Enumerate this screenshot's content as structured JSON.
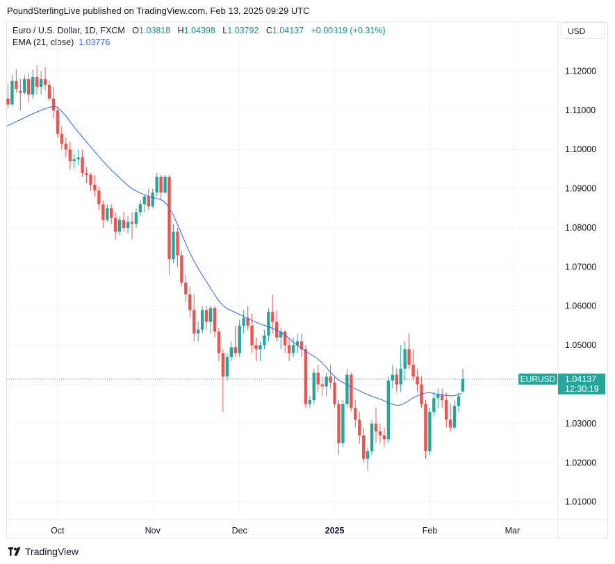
{
  "header": {
    "published": "PoundSterlingLive published on TradingView.com, Feb 13, 2025 09:29 UTC"
  },
  "legend": {
    "symbol": "Euro / U.S. Dollar, 1D, FXCM",
    "o_label": "O",
    "o_value": "1.03818",
    "h_label": "H",
    "h_value": "1.04398",
    "l_label": "L",
    "l_value": "1.03792",
    "c_label": "C",
    "c_value": "1.04137",
    "change": "+0.00319 (+0.31%)",
    "ema_label": "EMA (21, close)",
    "ema_value": "1.03776"
  },
  "currency_button": "USD",
  "footer": {
    "brand": "TradingView"
  },
  "colors": {
    "up": "#26a69a",
    "down": "#ef5350",
    "ema": "#2962ff",
    "grid": "#f0f3fa",
    "axis_text": "#131722"
  },
  "chart_data": {
    "type": "candlestick",
    "title": "Euro / U.S. Dollar, 1D, FXCM",
    "ylim": [
      1.0055,
      1.1325
    ],
    "y_ticks": [
      "1.12000",
      "1.11000",
      "1.10000",
      "1.09000",
      "1.08000",
      "1.07000",
      "1.06000",
      "1.05000",
      "1.04000",
      "1.03000",
      "1.02000",
      "1.01000"
    ],
    "y_tick_values": [
      1.12,
      1.11,
      1.1,
      1.09,
      1.08,
      1.07,
      1.06,
      1.05,
      1.04,
      1.03,
      1.02,
      1.01
    ],
    "x_ticks": [
      {
        "label": "Oct",
        "index": 12,
        "bold": false
      },
      {
        "label": "Nov",
        "index": 35,
        "bold": false
      },
      {
        "label": "Dec",
        "index": 56,
        "bold": false
      },
      {
        "label": "2025",
        "index": 79,
        "bold": true
      },
      {
        "label": "Feb",
        "index": 102,
        "bold": false
      },
      {
        "label": "Mar",
        "index": 122,
        "bold": false
      }
    ],
    "candles": [
      [
        1.113,
        1.1165,
        1.1105,
        1.1115
      ],
      [
        1.1115,
        1.119,
        1.111,
        1.1175
      ],
      [
        1.1175,
        1.1205,
        1.1145,
        1.1155
      ],
      [
        1.115,
        1.118,
        1.11,
        1.1145
      ],
      [
        1.1145,
        1.119,
        1.114,
        1.118
      ],
      [
        1.118,
        1.1195,
        1.112,
        1.114
      ],
      [
        1.114,
        1.1205,
        1.113,
        1.1185
      ],
      [
        1.1185,
        1.1215,
        1.114,
        1.116
      ],
      [
        1.116,
        1.12,
        1.114,
        1.118
      ],
      [
        1.118,
        1.121,
        1.115,
        1.1165
      ],
      [
        1.1165,
        1.1175,
        1.1125,
        1.113
      ],
      [
        1.113,
        1.116,
        1.108,
        1.11
      ],
      [
        1.11,
        1.111,
        1.103,
        1.104
      ],
      [
        1.104,
        1.106,
        1.1,
        1.1015
      ],
      [
        1.1015,
        1.103,
        1.098,
        1.1
      ],
      [
        1.1,
        1.102,
        1.095,
        1.097
      ],
      [
        1.097,
        1.099,
        1.095,
        1.0975
      ],
      [
        1.0975,
        1.1,
        1.096,
        1.098
      ],
      [
        1.098,
        1.1,
        1.093,
        1.094
      ],
      [
        1.094,
        1.0955,
        1.0915,
        1.0935
      ],
      [
        1.0935,
        1.094,
        1.0895,
        1.091
      ],
      [
        1.091,
        1.0935,
        1.088,
        1.0895
      ],
      [
        1.0895,
        1.0905,
        1.0845,
        1.086
      ],
      [
        1.086,
        1.087,
        1.08,
        1.082
      ],
      [
        1.082,
        1.086,
        1.0815,
        1.085
      ],
      [
        1.085,
        1.086,
        1.081,
        1.0825
      ],
      [
        1.0825,
        1.084,
        1.077,
        1.079
      ],
      [
        1.079,
        1.083,
        1.078,
        1.082
      ],
      [
        1.082,
        1.084,
        1.079,
        1.08
      ],
      [
        1.08,
        1.083,
        1.0785,
        1.0815
      ],
      [
        1.0815,
        1.084,
        1.077,
        1.081
      ],
      [
        1.081,
        1.085,
        1.08,
        1.084
      ],
      [
        1.084,
        1.087,
        1.083,
        1.086
      ],
      [
        1.086,
        1.0885,
        1.084,
        1.088
      ],
      [
        1.088,
        1.09,
        1.0845,
        1.0855
      ],
      [
        1.0855,
        1.09,
        1.085,
        1.089
      ],
      [
        1.089,
        1.094,
        1.088,
        1.093
      ],
      [
        1.093,
        1.0935,
        1.087,
        1.089
      ],
      [
        1.089,
        1.0935,
        1.0885,
        1.093
      ],
      [
        1.093,
        1.0935,
        1.068,
        1.072
      ],
      [
        1.072,
        1.081,
        1.071,
        1.079
      ],
      [
        1.079,
        1.08,
        1.07,
        1.073
      ],
      [
        1.073,
        1.074,
        1.065,
        1.066
      ],
      [
        1.066,
        1.068,
        1.061,
        1.063
      ],
      [
        1.063,
        1.065,
        1.057,
        1.059
      ],
      [
        1.059,
        1.063,
        1.051,
        1.053
      ],
      [
        1.053,
        1.056,
        1.051,
        1.054
      ],
      [
        1.054,
        1.06,
        1.053,
        1.059
      ],
      [
        1.059,
        1.06,
        1.054,
        1.056
      ],
      [
        1.056,
        1.06,
        1.053,
        1.0595
      ],
      [
        1.0595,
        1.06,
        1.052,
        1.0535
      ],
      [
        1.0535,
        1.0545,
        1.046,
        1.048
      ],
      [
        1.048,
        1.049,
        1.033,
        1.042
      ],
      [
        1.042,
        1.048,
        1.041,
        1.047
      ],
      [
        1.047,
        1.051,
        1.046,
        1.0495
      ],
      [
        1.0495,
        1.055,
        1.047,
        1.048
      ],
      [
        1.048,
        1.0565,
        1.047,
        1.055
      ],
      [
        1.055,
        1.059,
        1.053,
        1.057
      ],
      [
        1.057,
        1.06,
        1.054,
        1.055
      ],
      [
        1.055,
        1.058,
        1.048,
        1.05
      ],
      [
        1.05,
        1.052,
        1.046,
        1.049
      ],
      [
        1.049,
        1.051,
        1.046,
        1.05
      ],
      [
        1.05,
        1.054,
        1.049,
        1.0525
      ],
      [
        1.0525,
        1.0595,
        1.051,
        1.0585
      ],
      [
        1.0585,
        1.063,
        1.053,
        1.056
      ],
      [
        1.056,
        1.059,
        1.051,
        1.052
      ],
      [
        1.052,
        1.0545,
        1.049,
        1.0535
      ],
      [
        1.0535,
        1.054,
        1.048,
        1.05
      ],
      [
        1.05,
        1.052,
        1.046,
        1.048
      ],
      [
        1.048,
        1.052,
        1.047,
        1.05
      ],
      [
        1.05,
        1.053,
        1.048,
        1.051
      ],
      [
        1.051,
        1.053,
        1.047,
        1.049
      ],
      [
        1.049,
        1.05,
        1.034,
        1.035
      ],
      [
        1.035,
        1.037,
        1.034,
        1.036
      ],
      [
        1.036,
        1.044,
        1.035,
        1.043
      ],
      [
        1.043,
        1.045,
        1.038,
        1.04
      ],
      [
        1.04,
        1.042,
        1.037,
        1.0395
      ],
      [
        1.0395,
        1.043,
        1.037,
        1.042
      ],
      [
        1.042,
        1.045,
        1.039,
        1.0405
      ],
      [
        1.0405,
        1.042,
        1.034,
        1.035
      ],
      [
        1.035,
        1.036,
        1.022,
        1.025
      ],
      [
        1.025,
        1.036,
        1.024,
        1.035
      ],
      [
        1.035,
        1.044,
        1.034,
        1.0425
      ],
      [
        1.0425,
        1.043,
        1.033,
        1.034
      ],
      [
        1.034,
        1.036,
        1.029,
        1.031
      ],
      [
        1.031,
        1.033,
        1.025,
        1.027
      ],
      [
        1.027,
        1.029,
        1.02,
        1.021
      ],
      [
        1.021,
        1.024,
        1.018,
        1.023
      ],
      [
        1.023,
        1.031,
        1.022,
        1.03
      ],
      [
        1.03,
        1.034,
        1.025,
        1.028
      ],
      [
        1.028,
        1.03,
        1.025,
        1.027
      ],
      [
        1.027,
        1.029,
        1.024,
        1.026
      ],
      [
        1.026,
        1.042,
        1.025,
        1.041
      ],
      [
        1.041,
        1.045,
        1.039,
        1.0425
      ],
      [
        1.0425,
        1.044,
        1.038,
        1.04
      ],
      [
        1.04,
        1.05,
        1.038,
        1.044
      ],
      [
        1.044,
        1.051,
        1.041,
        1.049
      ],
      [
        1.049,
        1.053,
        1.044,
        1.045
      ],
      [
        1.045,
        1.049,
        1.041,
        1.042
      ],
      [
        1.042,
        1.044,
        1.038,
        1.04
      ],
      [
        1.04,
        1.042,
        1.034,
        1.035
      ],
      [
        1.035,
        1.036,
        1.021,
        1.023
      ],
      [
        1.023,
        1.034,
        1.022,
        1.033
      ],
      [
        1.033,
        1.038,
        1.032,
        1.0365
      ],
      [
        1.0365,
        1.039,
        1.034,
        1.0375
      ],
      [
        1.0375,
        1.039,
        1.034,
        1.036
      ],
      [
        1.036,
        1.038,
        1.029,
        1.031
      ],
      [
        1.031,
        1.035,
        1.028,
        1.029
      ],
      [
        1.029,
        1.036,
        1.0285,
        1.0345
      ],
      [
        1.0345,
        1.038,
        1.033,
        1.037
      ],
      [
        1.0382,
        1.044,
        1.0379,
        1.0414
      ]
    ],
    "ema": {
      "name": "EMA (21, close)",
      "anchors": [
        [
          0,
          1.106
        ],
        [
          4,
          1.108
        ],
        [
          8,
          1.11
        ],
        [
          11,
          1.111
        ],
        [
          12,
          1.111
        ],
        [
          14,
          1.109
        ],
        [
          16,
          1.106
        ],
        [
          20,
          1.101
        ],
        [
          24,
          1.096
        ],
        [
          27,
          1.093
        ],
        [
          30,
          1.09
        ],
        [
          33,
          1.0885
        ],
        [
          36,
          1.0875
        ],
        [
          38,
          1.087
        ],
        [
          40,
          1.084
        ],
        [
          42,
          1.079
        ],
        [
          44,
          1.074
        ],
        [
          46,
          1.07
        ],
        [
          49,
          1.065
        ],
        [
          52,
          1.06
        ],
        [
          55,
          1.0585
        ],
        [
          58,
          1.057
        ],
        [
          61,
          1.0555
        ],
        [
          64,
          1.0545
        ],
        [
          67,
          1.053
        ],
        [
          70,
          1.05
        ],
        [
          73,
          1.048
        ],
        [
          76,
          1.046
        ],
        [
          79,
          1.042
        ],
        [
          82,
          1.04
        ],
        [
          85,
          1.0385
        ],
        [
          88,
          1.037
        ],
        [
          91,
          1.036
        ],
        [
          94,
          1.0345
        ],
        [
          96,
          1.035
        ],
        [
          98,
          1.0365
        ],
        [
          100,
          1.0375
        ],
        [
          102,
          1.038
        ],
        [
          104,
          1.0375
        ],
        [
          106,
          1.0372
        ],
        [
          108,
          1.037
        ],
        [
          110,
          1.0377
        ]
      ]
    },
    "last_price": {
      "symbol": "EURUSD",
      "price": "1.04137",
      "countdown": "12:30:19",
      "value": 1.04137
    }
  }
}
